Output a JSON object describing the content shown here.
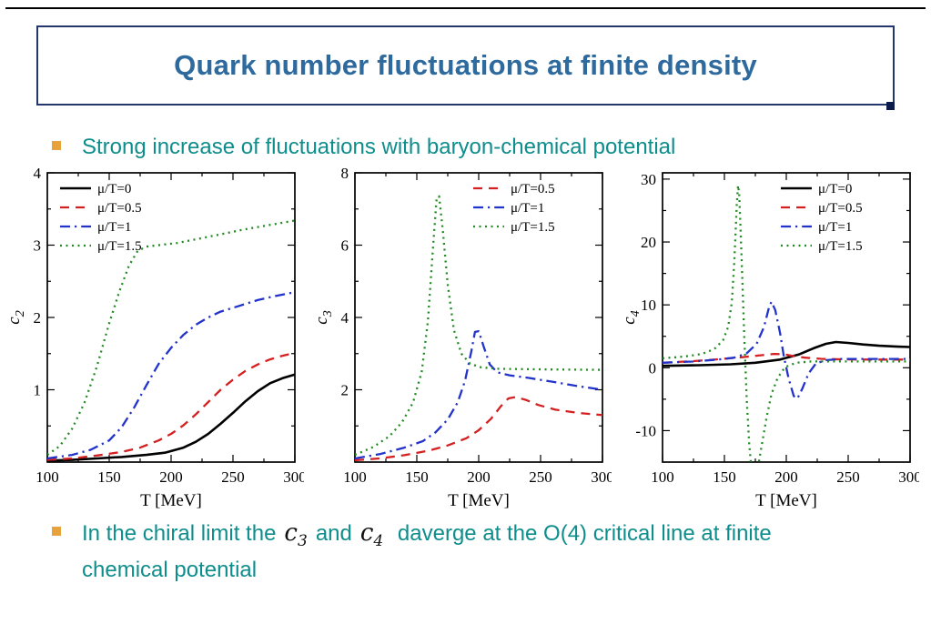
{
  "slide": {
    "title": "Quark number fluctuations at finite density"
  },
  "bullets": {
    "b1": "Strong increase of fluctuations with baryon-chemical potential",
    "b2_pre": "In the chiral limit the",
    "b2_c3_base": "c",
    "b2_c3_sub": "3",
    "b2_mid": "and",
    "b2_c4_base": "c",
    "b2_c4_sub": "4",
    "b2_post": "daverge at the O(4) critical line at finite chemical potential"
  },
  "colors": {
    "title": "#2e6a9e",
    "bullet_text": "#0e8d8d",
    "bullet_marker": "#e8a23c",
    "series_black": "#000000",
    "series_red": "#d42020",
    "series_blue": "#2233cc",
    "series_green": "#1f8a1f"
  },
  "chart_data": [
    {
      "type": "line",
      "title": "",
      "xlabel": "T [MeV]",
      "ylabel_base": "c",
      "ylabel_sub": "2",
      "xlim": [
        100,
        300
      ],
      "ylim": [
        0,
        4
      ],
      "xticks": [
        100,
        150,
        200,
        250,
        300
      ],
      "yticks": [
        1,
        2,
        3,
        4
      ],
      "xminor_step": 25,
      "yminor_step": 0.5,
      "grid": false,
      "legend_position": "top-left",
      "series": [
        {
          "name": "μ/T=0",
          "color": "#000000",
          "style": "solid",
          "width": 2.6,
          "points": [
            [
              100,
              0.02
            ],
            [
              120,
              0.03
            ],
            [
              140,
              0.05
            ],
            [
              160,
              0.07
            ],
            [
              180,
              0.1
            ],
            [
              195,
              0.13
            ],
            [
              210,
              0.2
            ],
            [
              220,
              0.28
            ],
            [
              230,
              0.39
            ],
            [
              240,
              0.53
            ],
            [
              250,
              0.68
            ],
            [
              260,
              0.84
            ],
            [
              270,
              0.98
            ],
            [
              280,
              1.09
            ],
            [
              290,
              1.16
            ],
            [
              300,
              1.21
            ]
          ]
        },
        {
          "name": "μ/T=0.5",
          "color": "#d42020",
          "style": "dashed",
          "width": 2.3,
          "points": [
            [
              100,
              0.03
            ],
            [
              120,
              0.05
            ],
            [
              140,
              0.09
            ],
            [
              160,
              0.14
            ],
            [
              175,
              0.2
            ],
            [
              190,
              0.3
            ],
            [
              200,
              0.39
            ],
            [
              210,
              0.51
            ],
            [
              220,
              0.66
            ],
            [
              230,
              0.83
            ],
            [
              240,
              1.0
            ],
            [
              250,
              1.14
            ],
            [
              260,
              1.26
            ],
            [
              270,
              1.35
            ],
            [
              280,
              1.42
            ],
            [
              290,
              1.47
            ],
            [
              300,
              1.51
            ]
          ]
        },
        {
          "name": "μ/T=1",
          "color": "#2233cc",
          "style": "dashdot",
          "width": 2.3,
          "points": [
            [
              100,
              0.05
            ],
            [
              120,
              0.1
            ],
            [
              135,
              0.17
            ],
            [
              150,
              0.3
            ],
            [
              160,
              0.48
            ],
            [
              170,
              0.75
            ],
            [
              180,
              1.06
            ],
            [
              190,
              1.36
            ],
            [
              200,
              1.58
            ],
            [
              210,
              1.76
            ],
            [
              220,
              1.9
            ],
            [
              230,
              2.0
            ],
            [
              240,
              2.08
            ],
            [
              255,
              2.16
            ],
            [
              270,
              2.24
            ],
            [
              285,
              2.3
            ],
            [
              300,
              2.35
            ]
          ]
        },
        {
          "name": "μ/T=1.5",
          "color": "#1f8a1f",
          "style": "dotted",
          "width": 2.3,
          "points": [
            [
              100,
              0.1
            ],
            [
              110,
              0.22
            ],
            [
              120,
              0.46
            ],
            [
              130,
              0.82
            ],
            [
              140,
              1.32
            ],
            [
              150,
              1.92
            ],
            [
              158,
              2.35
            ],
            [
              166,
              2.72
            ],
            [
              173,
              2.92
            ],
            [
              180,
              2.98
            ],
            [
              190,
              3.0
            ],
            [
              205,
              3.03
            ],
            [
              220,
              3.08
            ],
            [
              240,
              3.15
            ],
            [
              260,
              3.22
            ],
            [
              280,
              3.28
            ],
            [
              300,
              3.34
            ]
          ]
        }
      ]
    },
    {
      "type": "line",
      "title": "",
      "xlabel": "T [MeV]",
      "ylabel_base": "c",
      "ylabel_sub": "3",
      "xlim": [
        100,
        300
      ],
      "ylim": [
        0,
        8
      ],
      "xticks": [
        100,
        150,
        200,
        250,
        300
      ],
      "yticks": [
        2,
        4,
        6,
        8
      ],
      "xminor_step": 25,
      "yminor_step": 1,
      "grid": false,
      "legend_position": "top-right",
      "series": [
        {
          "name": "μ/T=0.5",
          "color": "#d42020",
          "style": "dashed",
          "width": 2.3,
          "points": [
            [
              100,
              0.05
            ],
            [
              120,
              0.1
            ],
            [
              140,
              0.19
            ],
            [
              160,
              0.32
            ],
            [
              175,
              0.46
            ],
            [
              190,
              0.66
            ],
            [
              200,
              0.88
            ],
            [
              210,
              1.2
            ],
            [
              218,
              1.55
            ],
            [
              224,
              1.76
            ],
            [
              230,
              1.8
            ],
            [
              238,
              1.72
            ],
            [
              248,
              1.58
            ],
            [
              262,
              1.45
            ],
            [
              280,
              1.36
            ],
            [
              300,
              1.3
            ]
          ]
        },
        {
          "name": "μ/T=1",
          "color": "#2233cc",
          "style": "dashdot",
          "width": 2.3,
          "points": [
            [
              100,
              0.1
            ],
            [
              120,
              0.22
            ],
            [
              140,
              0.4
            ],
            [
              155,
              0.58
            ],
            [
              165,
              0.82
            ],
            [
              175,
              1.18
            ],
            [
              183,
              1.65
            ],
            [
              189,
              2.25
            ],
            [
              194,
              3.05
            ],
            [
              197,
              3.6
            ],
            [
              200,
              3.62
            ],
            [
              204,
              3.2
            ],
            [
              209,
              2.7
            ],
            [
              215,
              2.48
            ],
            [
              225,
              2.4
            ],
            [
              240,
              2.33
            ],
            [
              260,
              2.22
            ],
            [
              280,
              2.1
            ],
            [
              300,
              2.0
            ]
          ]
        },
        {
          "name": "μ/T=1.5",
          "color": "#1f8a1f",
          "style": "dotted",
          "width": 2.3,
          "points": [
            [
              100,
              0.2
            ],
            [
              115,
              0.42
            ],
            [
              128,
              0.72
            ],
            [
              138,
              1.1
            ],
            [
              147,
              1.65
            ],
            [
              154,
              2.5
            ],
            [
              159,
              3.9
            ],
            [
              163,
              5.9
            ],
            [
              166,
              7.3
            ],
            [
              168,
              7.35
            ],
            [
              171,
              6.4
            ],
            [
              175,
              4.9
            ],
            [
              180,
              3.65
            ],
            [
              186,
              3.0
            ],
            [
              193,
              2.72
            ],
            [
              202,
              2.62
            ],
            [
              215,
              2.58
            ],
            [
              235,
              2.57
            ],
            [
              260,
              2.56
            ],
            [
              300,
              2.55
            ]
          ]
        }
      ]
    },
    {
      "type": "line",
      "title": "",
      "xlabel": "T [MeV]",
      "ylabel_base": "c",
      "ylabel_sub": "4",
      "xlim": [
        100,
        300
      ],
      "ylim": [
        -15,
        31
      ],
      "xticks": [
        100,
        150,
        200,
        250,
        300
      ],
      "yticks": [
        -10,
        0,
        10,
        20,
        30
      ],
      "xminor_step": 25,
      "yminor_step": 5,
      "grid": false,
      "legend_position": "top-right",
      "series": [
        {
          "name": "μ/T=0",
          "color": "#000000",
          "style": "solid",
          "width": 2.6,
          "points": [
            [
              100,
              0.3
            ],
            [
              130,
              0.4
            ],
            [
              155,
              0.55
            ],
            [
              175,
              0.8
            ],
            [
              195,
              1.3
            ],
            [
              210,
              2.1
            ],
            [
              222,
              3.1
            ],
            [
              232,
              3.8
            ],
            [
              240,
              4.1
            ],
            [
              250,
              3.95
            ],
            [
              262,
              3.7
            ],
            [
              275,
              3.5
            ],
            [
              290,
              3.35
            ],
            [
              300,
              3.3
            ]
          ]
        },
        {
          "name": "μ/T=0.5",
          "color": "#d42020",
          "style": "dashed",
          "width": 2.3,
          "points": [
            [
              100,
              0.8
            ],
            [
              125,
              1.05
            ],
            [
              145,
              1.35
            ],
            [
              165,
              1.7
            ],
            [
              180,
              2.0
            ],
            [
              190,
              2.2
            ],
            [
              198,
              2.15
            ],
            [
              206,
              1.85
            ],
            [
              215,
              1.6
            ],
            [
              228,
              1.42
            ],
            [
              245,
              1.33
            ],
            [
              270,
              1.3
            ],
            [
              300,
              1.3
            ]
          ]
        },
        {
          "name": "μ/T=1",
          "color": "#2233cc",
          "style": "dashdot",
          "width": 2.3,
          "points": [
            [
              100,
              0.8
            ],
            [
              125,
              1.0
            ],
            [
              145,
              1.3
            ],
            [
              158,
              1.6
            ],
            [
              168,
              2.3
            ],
            [
              176,
              3.8
            ],
            [
              182,
              6.5
            ],
            [
              186,
              9.6
            ],
            [
              188,
              10.5
            ],
            [
              191,
              9.2
            ],
            [
              195,
              5.5
            ],
            [
              198,
              1.8
            ],
            [
              202,
              -1.8
            ],
            [
              206,
              -4.5
            ],
            [
              209,
              -4.9
            ],
            [
              213,
              -3.3
            ],
            [
              218,
              -0.9
            ],
            [
              224,
              0.7
            ],
            [
              232,
              1.2
            ],
            [
              245,
              1.4
            ],
            [
              270,
              1.4
            ],
            [
              300,
              1.4
            ]
          ]
        },
        {
          "name": "μ/T=1.5",
          "color": "#1f8a1f",
          "style": "dotted",
          "width": 2.3,
          "points": [
            [
              100,
              1.5
            ],
            [
              118,
              1.8
            ],
            [
              132,
              2.2
            ],
            [
              142,
              3.0
            ],
            [
              149,
              4.4
            ],
            [
              153,
              6.5
            ],
            [
              156,
              10.5
            ],
            [
              158,
              17.0
            ],
            [
              160,
              26.0
            ],
            [
              161,
              29.0
            ],
            [
              162,
              27.5
            ],
            [
              164,
              17.0
            ],
            [
              166,
              5.0
            ],
            [
              168,
              -5.0
            ],
            [
              170,
              -12.0
            ],
            [
              172,
              -16.5
            ],
            [
              174,
              -17.5
            ],
            [
              177,
              -16.0
            ],
            [
              180,
              -12.5
            ],
            [
              184,
              -8.0
            ],
            [
              188,
              -4.2
            ],
            [
              193,
              -1.6
            ],
            [
              199,
              0.1
            ],
            [
              208,
              0.8
            ],
            [
              220,
              1.0
            ],
            [
              250,
              1.0
            ],
            [
              300,
              1.0
            ]
          ]
        }
      ]
    }
  ]
}
